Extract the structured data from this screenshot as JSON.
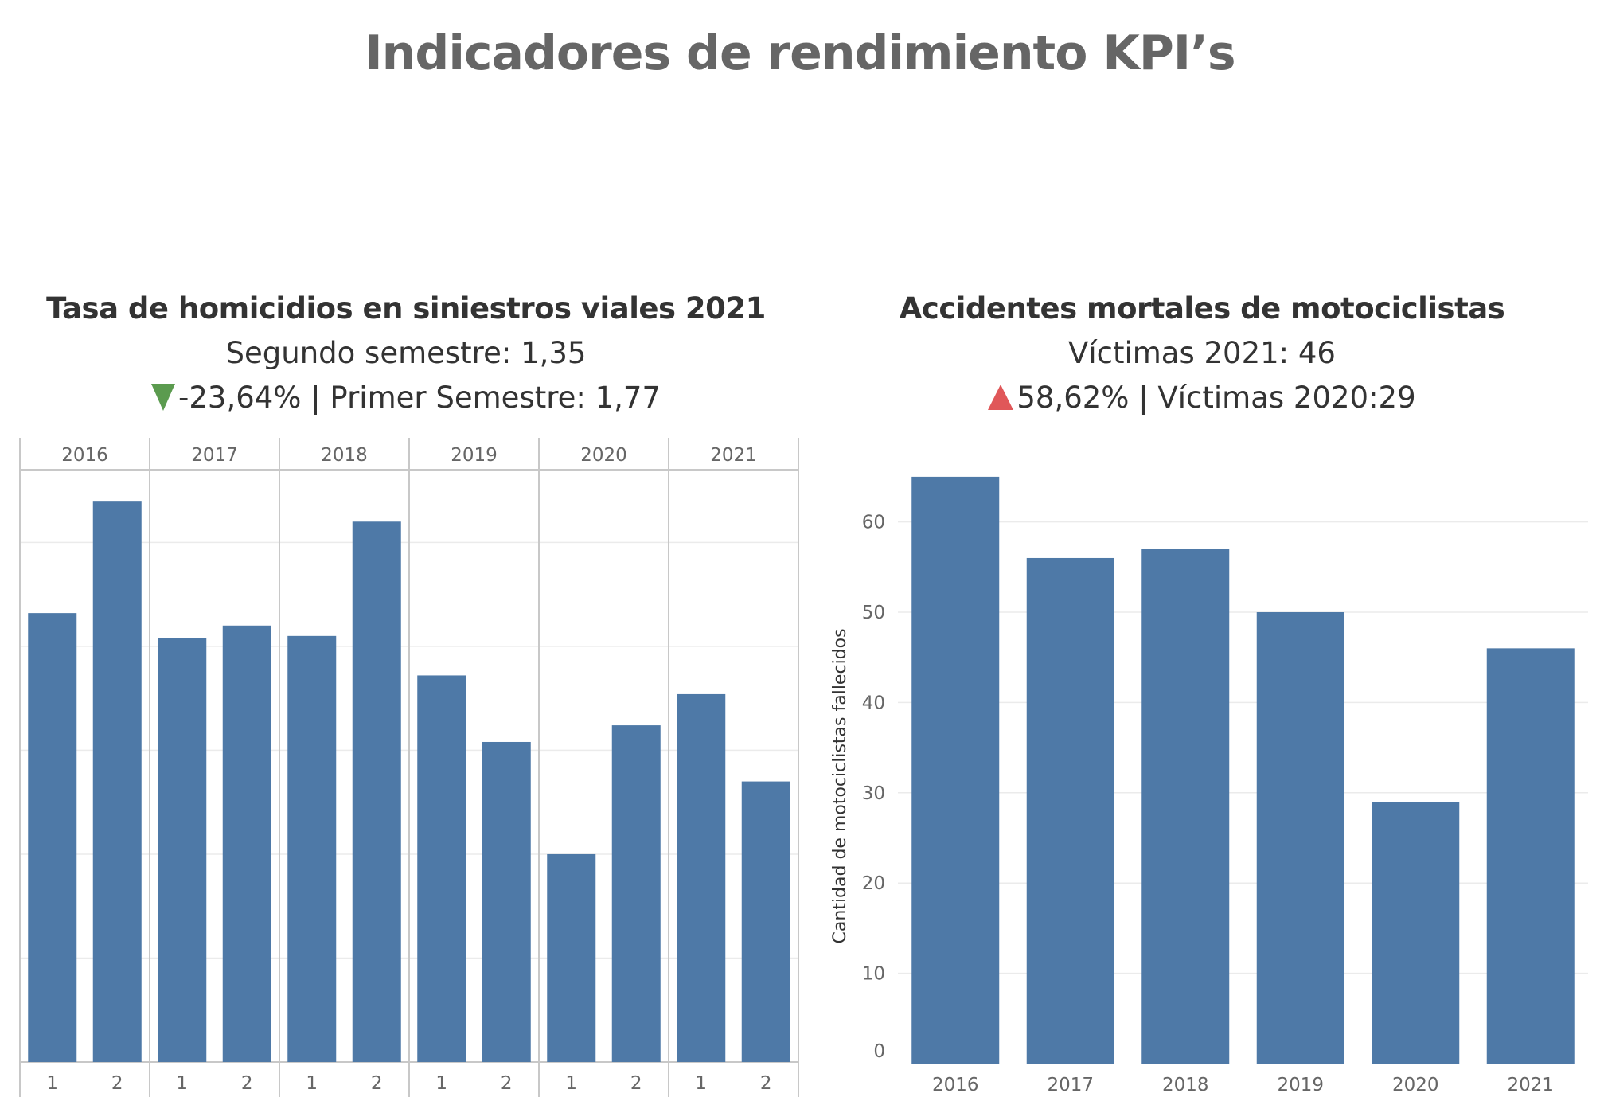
{
  "page_title": "Indicadores de rendimiento KPI’s",
  "colors": {
    "bar": "#4e79a7",
    "down": "#5b9b4f",
    "up": "#e05759",
    "grid": "#ebebeb",
    "divider": "#c8c8c8"
  },
  "left_panel": {
    "title": "Tasa de homicidios en siniestros viales 2021",
    "subtitle": "Segundo semestre: 1,35",
    "kpi_icon": "triangle-down-icon",
    "kpi_text": "-23,64% | Primer Semestre: 1,77"
  },
  "right_panel": {
    "title": "Accidentes mortales de motociclistas",
    "subtitle": "Víctimas 2021: 46",
    "kpi_icon": "triangle-up-icon",
    "kpi_text": "58,62% | Víctimas 2020:29"
  },
  "chart_data": [
    {
      "type": "bar",
      "title": "Tasa de homicidios en siniestros viales 2021",
      "groups": [
        "2016",
        "2017",
        "2018",
        "2019",
        "2020",
        "2021"
      ],
      "categories": [
        "1",
        "2"
      ],
      "values": [
        [
          2.16,
          2.7
        ],
        [
          2.04,
          2.1
        ],
        [
          2.05,
          2.6
        ],
        [
          1.86,
          1.54
        ],
        [
          1.0,
          1.62
        ],
        [
          1.77,
          1.35
        ]
      ],
      "ylim": [
        0,
        2.85
      ],
      "y_grid": [
        0.5,
        1.0,
        1.5,
        2.0,
        2.5
      ],
      "y_axis_labels": false,
      "grid": true
    },
    {
      "type": "bar",
      "title": "Accidentes mortales de motociclistas",
      "categories": [
        "2016",
        "2017",
        "2018",
        "2019",
        "2020",
        "2021"
      ],
      "values": [
        65,
        56,
        57,
        50,
        29,
        46
      ],
      "ylabel": "Cantidad de motociclistas fallecidos",
      "ylim": [
        0,
        65
      ],
      "yticks": [
        0,
        10,
        20,
        30,
        40,
        50,
        60
      ],
      "grid": true
    }
  ]
}
